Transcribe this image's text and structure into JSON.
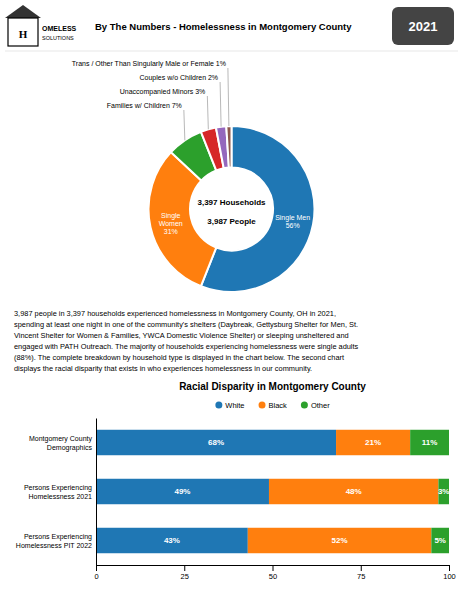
{
  "chart_data": [
    {
      "type": "pie",
      "title": "By The Numbers - Homelessness in Montgomery County",
      "subtitle": "2021",
      "values": [
        56,
        31,
        7,
        3,
        2,
        1
      ],
      "value_labels": [
        "Single Men\n56%",
        "Single\nWomen\n31%",
        "Families w/ Children 7%",
        "Unaccompanied Minors 3%",
        "Couples w/o Children 2%",
        "Trans / Other Than Singularly Male or Female 1%"
      ],
      "data_labels": true,
      "annotations": [
        "H",
        "OMELESS",
        "SOLUTIONS",
        "3,397 Households",
        "3,987 People",
        "3,987 people in 3,397 households experienced homelessness in Montgomery County, OH in 2021,\nspending at least one night in one of the community's shelters (Daybreak, Gettysburg Shelter for Men, St.\nVincent Shelter for Women & Families, YWCA Domestic Violence Shelter) or sleeping unsheltered and\nengaged with PATH Outreach.  The majority of households experiencing homelessness were single adults\n(88%).  The complete breakdown by household type is displayed in the chart below. The second chart\ndisplays the racial disparity that exists in who experiences homelessness in our community."
      ]
    },
    {
      "type": "bar",
      "title": "Racial Disparity in Montgomery County",
      "orientation": "horizontal",
      "stacked": true,
      "categories": [
        "Montgomery County\nDemographics",
        "Persons Experiencing\nHomelessness 2021",
        "Persons Experiencing\nHomelessness PIT 2022"
      ],
      "series": [
        {
          "name": "White",
          "values": [
            68,
            49,
            43
          ],
          "value_labels": [
            "68%",
            "49%",
            "43%"
          ]
        },
        {
          "name": "Black",
          "values": [
            21,
            48,
            52
          ],
          "value_labels": [
            "21%",
            "48%",
            "52%"
          ]
        },
        {
          "name": "Other",
          "values": [
            11,
            3,
            5
          ],
          "value_labels": [
            "11%",
            "3%",
            "5%"
          ]
        }
      ],
      "xlim": [
        0,
        100
      ],
      "xticks": [
        0,
        25,
        50,
        75,
        100
      ],
      "data_labels": true,
      "legend": "top",
      "grid": false
    }
  ]
}
